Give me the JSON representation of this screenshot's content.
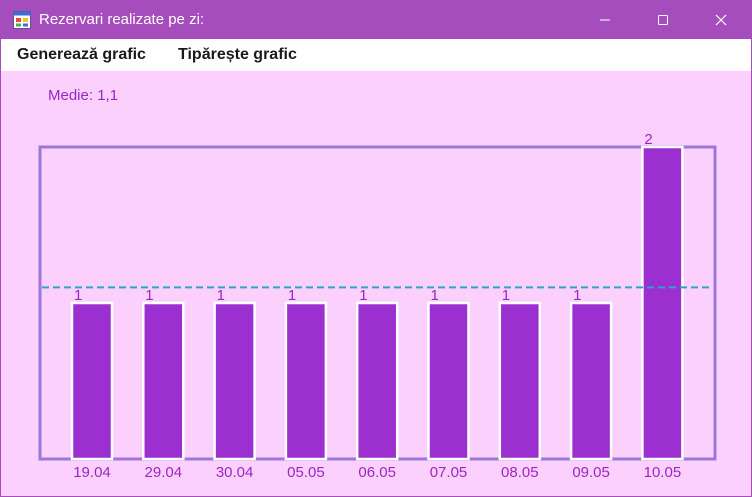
{
  "window": {
    "title": "Rezervari realizate pe zi:",
    "icons": {
      "app": "windows-form-icon",
      "minimize": "minimize-icon",
      "maximize": "maximize-icon",
      "close": "close-icon"
    }
  },
  "menu": {
    "items": [
      {
        "label": "Generează grafic"
      },
      {
        "label": "Tipărește grafic"
      }
    ]
  },
  "average": {
    "label": "Medie: 1,1"
  },
  "colors": {
    "titlebar": "#a64dbd",
    "background": "#fcd0fc",
    "bar": "#9b2fcf",
    "frame": "#9b77d9",
    "average_line": "#2aa5c4",
    "text": "#9b26c4"
  },
  "chart_data": {
    "type": "bar",
    "categories": [
      "19.04",
      "29.04",
      "30.04",
      "05.05",
      "06.05",
      "07.05",
      "08.05",
      "09.05",
      "10.05"
    ],
    "values": [
      1,
      1,
      1,
      1,
      1,
      1,
      1,
      1,
      2
    ],
    "value_labels": [
      "1",
      "1",
      "1",
      "1",
      "1",
      "1",
      "1",
      "1",
      "2"
    ],
    "average": 1.1,
    "ylim": [
      0,
      2
    ],
    "grid": false,
    "legend": "none"
  }
}
